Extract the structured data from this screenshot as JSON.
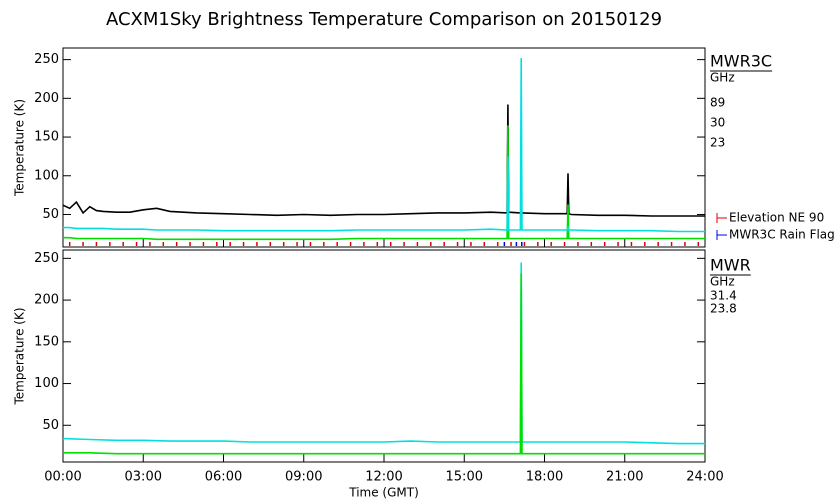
{
  "title": "ACXM1Sky Brightness Temperature Comparison on 20150129",
  "chart_data": [
    {
      "type": "line",
      "ylabel": "Temperature (K)",
      "legend_title": "MWR3C",
      "legend_subtitle": "GHz",
      "xlim": [
        0,
        24
      ],
      "xticks": [
        0,
        3,
        6,
        9,
        12,
        15,
        18,
        21,
        24
      ],
      "ylim": [
        8,
        265
      ],
      "yticks": [
        50,
        100,
        150,
        200,
        250
      ],
      "x": [
        0,
        0.25,
        0.5,
        0.75,
        1,
        1.25,
        1.5,
        2,
        2.5,
        3,
        3.5,
        4,
        5,
        6,
        7,
        8,
        9,
        10,
        11,
        12,
        13,
        14,
        15,
        16,
        16.6,
        16.63,
        16.66,
        17.1,
        17.13,
        17.16,
        18,
        18.85,
        18.88,
        18.91,
        19,
        20,
        21,
        22,
        23,
        24
      ],
      "series": [
        {
          "name": "89",
          "color": "#000000",
          "values": [
            62,
            58,
            66,
            52,
            60,
            55,
            54,
            53,
            53,
            56,
            58,
            54,
            52,
            51,
            50,
            49,
            50,
            49,
            50,
            50,
            51,
            52,
            52,
            53,
            52,
            192,
            53,
            52,
            52,
            52,
            51,
            51,
            103,
            51,
            50,
            49,
            49,
            48,
            48,
            48
          ]
        },
        {
          "name": "30",
          "color": "#00e000",
          "values": [
            20,
            20,
            19,
            19,
            19,
            19,
            19,
            19,
            19,
            19,
            18,
            18,
            18,
            18,
            18,
            18,
            18,
            18,
            19,
            19,
            19,
            19,
            19,
            19,
            19,
            165,
            19,
            19,
            19,
            19,
            19,
            19,
            63,
            19,
            19,
            19,
            19,
            19,
            19,
            19
          ]
        },
        {
          "name": "23",
          "color": "#00e0e0",
          "values": [
            33,
            33,
            32,
            32,
            32,
            32,
            32,
            31,
            31,
            31,
            30,
            30,
            30,
            29,
            29,
            29,
            29,
            29,
            30,
            30,
            30,
            30,
            30,
            31,
            30,
            125,
            30,
            30,
            252,
            30,
            30,
            30,
            33,
            30,
            30,
            29,
            29,
            29,
            28,
            28
          ]
        }
      ],
      "flags": [
        {
          "name": "Elevation NE 90",
          "color": "#e00000",
          "x": [
            0.25,
            0.75,
            1.25,
            1.75,
            2.25,
            2.75,
            3.25,
            3.75,
            4.25,
            4.75,
            5.25,
            5.75,
            6.25,
            6.75,
            7.25,
            7.75,
            8.25,
            8.75,
            9.25,
            9.75,
            10.25,
            10.75,
            11.25,
            11.75,
            12.25,
            12.75,
            13.25,
            13.75,
            14.25,
            14.75,
            15.25,
            15.75,
            16.25,
            16.75,
            17.25,
            17.75,
            18.25,
            18.75,
            19.25,
            19.75,
            20.25,
            20.75,
            21.25,
            21.75,
            22.25,
            22.75,
            23.25,
            23.75
          ]
        },
        {
          "name": "MWR3C Rain Flag",
          "color": "#0000e0",
          "x": [
            16.5,
            16.95,
            17.15
          ]
        }
      ]
    },
    {
      "type": "line",
      "ylabel": "Temperature (K)",
      "xlabel": "Time (GMT)",
      "legend_title": "MWR",
      "legend_subtitle": "GHz",
      "xlim": [
        0,
        24
      ],
      "xticks": [
        {
          "value": 0,
          "label": "00:00"
        },
        {
          "value": 3,
          "label": "03:00"
        },
        {
          "value": 6,
          "label": "06:00"
        },
        {
          "value": 9,
          "label": "09:00"
        },
        {
          "value": 12,
          "label": "12:00"
        },
        {
          "value": 15,
          "label": "15:00"
        },
        {
          "value": 18,
          "label": "18:00"
        },
        {
          "value": 21,
          "label": "21:00"
        },
        {
          "value": 24,
          "label": "24:00"
        }
      ],
      "ylim": [
        6,
        260
      ],
      "yticks": [
        50,
        100,
        150,
        200,
        250
      ],
      "x": [
        0,
        1,
        2,
        3,
        4,
        5,
        6,
        7,
        8,
        9,
        10,
        11,
        12,
        13,
        14,
        15,
        16,
        17,
        17.1,
        17.13,
        17.16,
        18,
        19,
        20,
        21,
        22,
        23,
        24
      ],
      "series": [
        {
          "name": "31.4",
          "color": "#00e000",
          "values": [
            17,
            17,
            16,
            16,
            16,
            16,
            16,
            16,
            16,
            16,
            16,
            16,
            16,
            16,
            16,
            16,
            16,
            16,
            16,
            232,
            16,
            16,
            16,
            16,
            16,
            16,
            16,
            16
          ]
        },
        {
          "name": "23.8",
          "color": "#00e0e0",
          "values": [
            34,
            33,
            32,
            32,
            31,
            31,
            31,
            30,
            30,
            30,
            30,
            30,
            30,
            31,
            30,
            30,
            30,
            30,
            30,
            245,
            30,
            30,
            30,
            30,
            30,
            29,
            28,
            28
          ]
        }
      ]
    }
  ]
}
